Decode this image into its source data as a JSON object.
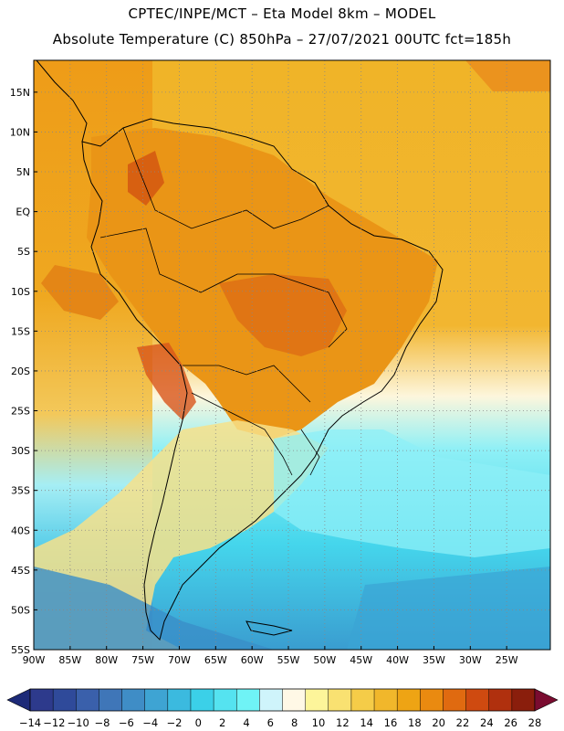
{
  "header": {
    "line1": "CPTEC/INPE/MCT –  Eta Model 8km – MODEL",
    "line2": "Absolute Temperature (C) 850hPa – 27/07/2021 00UTC fct=185h"
  },
  "map": {
    "lat_labels": [
      "15N",
      "10N",
      "5N",
      "EQ",
      "5S",
      "10S",
      "15S",
      "20S",
      "25S",
      "30S",
      "35S",
      "40S",
      "45S",
      "50S",
      "55S"
    ],
    "lat_values": [
      15,
      10,
      5,
      0,
      -5,
      -10,
      -15,
      -20,
      -25,
      -30,
      -35,
      -40,
      -45,
      -50,
      -55
    ],
    "lon_labels": [
      "90W",
      "85W",
      "80W",
      "75W",
      "70W",
      "65W",
      "60W",
      "55W",
      "50W",
      "45W",
      "40W",
      "35W",
      "30W",
      "25W"
    ],
    "lon_values": [
      -90,
      -85,
      -80,
      -75,
      -70,
      -65,
      -60,
      -55,
      -50,
      -45,
      -40,
      -35,
      -30,
      -25
    ],
    "lon_range": [
      -90,
      -19
    ],
    "lat_range": [
      -55,
      19
    ],
    "grid": true
  },
  "colorbar": {
    "labels": [
      "-14",
      "-12",
      "-10",
      "-8",
      "-6",
      "-4",
      "-2",
      "0",
      "2",
      "4",
      "6",
      "8",
      "10",
      "12",
      "14",
      "16",
      "18",
      "20",
      "22",
      "24",
      "26",
      "28"
    ],
    "colors": [
      "#2d3a8c",
      "#2f4a9a",
      "#3a60ab",
      "#3f76b8",
      "#3f8dc6",
      "#3ea4d3",
      "#3bbadf",
      "#3bd0e8",
      "#55e3f0",
      "#6ff3f6",
      "#cff4fb",
      "#fff8e6",
      "#fdf59a",
      "#f9e171",
      "#f5cc48",
      "#f1b72b",
      "#eea414",
      "#ea8a10",
      "#e06a10",
      "#cf4a10",
      "#b0300e",
      "#8a1e0c"
    ],
    "low_arrow_color": "#1d2a78",
    "high_arrow_color": "#7a0c30"
  }
}
